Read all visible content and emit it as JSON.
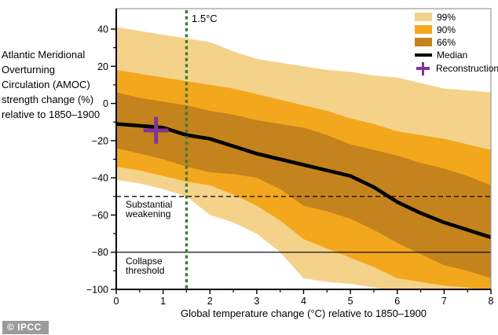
{
  "watermark": "© IPCC",
  "y_axis_title": "Atlantic Meridional\nOverturning\nCirculation (AMOC)\nstrength change (%)\nrelative to 1850–1900",
  "annotations": {
    "temp_label": "1.5°C",
    "substantial_weakening": "Substantial\nweakening",
    "collapse_threshold": "Collapse\nthreshold"
  },
  "legend": {
    "items": [
      {
        "type": "box",
        "color": "#F5D28A",
        "label": "99%"
      },
      {
        "type": "box",
        "color": "#F3A71C",
        "label": "90%"
      },
      {
        "type": "box",
        "color": "#C5831E",
        "label": "66%"
      },
      {
        "type": "line",
        "color": "#000000",
        "label": "Median"
      },
      {
        "type": "cross",
        "color": "#7E3794",
        "label": "Reconstruction"
      }
    ]
  },
  "colors": {
    "band_99": "#F5D28A",
    "band_90": "#F3A71C",
    "band_66": "#C5831E",
    "median": "#000000",
    "reconstruction": "#7E3794",
    "threshold_green": "#3B7D2F",
    "axis": "#000000",
    "frame": "#999999"
  },
  "chart_data": {
    "type": "area",
    "title": "",
    "xlabel": "Global temperature change (°C) relative to 1850–1900",
    "ylabel": "Atlantic Meridional Overturning Circulation (AMOC) strength change (%) relative to 1850–1900",
    "xlim": [
      0,
      8
    ],
    "ylim": [
      -100,
      51
    ],
    "grid": false,
    "legend_position": "top-right",
    "x_ticks_major": [
      0,
      1,
      2,
      3,
      4,
      5,
      6,
      7,
      8
    ],
    "x_tick_labels": [
      "0",
      "1",
      "2",
      "3",
      "4",
      "5",
      "6",
      "7",
      "8"
    ],
    "x_ticks_minor": [
      0.5,
      1.5,
      2.5,
      3.5,
      4.5,
      5.5,
      6.5,
      7.5
    ],
    "y_ticks_major": [
      40,
      20,
      0,
      -20,
      -40,
      -60,
      -80,
      -100
    ],
    "y_tick_labels": [
      "40",
      "20",
      "0",
      "−20",
      "−40",
      "−60",
      "−80",
      "−100"
    ],
    "y_ticks_minor": [
      30,
      10,
      -10,
      -30,
      -50,
      -70,
      -90
    ],
    "x": [
      0,
      0.5,
      1,
      1.5,
      2,
      2.5,
      3,
      3.5,
      4,
      4.5,
      5,
      5.5,
      6,
      6.5,
      7,
      7.5,
      8
    ],
    "bands": [
      {
        "name": "99%",
        "color": "#F5D28A",
        "upper": [
          41,
          39,
          37,
          35,
          33,
          28,
          24,
          22,
          20,
          18,
          17,
          15,
          14,
          11,
          8,
          7,
          6
        ],
        "lower": [
          -41,
          -43,
          -46,
          -50,
          -60,
          -64,
          -70,
          -80,
          -94,
          -96,
          -97,
          -99,
          -101,
          -102,
          -103,
          -103,
          -104
        ]
      },
      {
        "name": "90%",
        "color": "#F3A71C",
        "upper": [
          18,
          16,
          14,
          12,
          10,
          8,
          5,
          2,
          -1,
          -4,
          -8,
          -11,
          -15,
          -17,
          -19,
          -22,
          -25
        ],
        "lower": [
          -34,
          -36,
          -39,
          -42,
          -44,
          -49,
          -55,
          -63,
          -73,
          -78,
          -83,
          -88,
          -94,
          -96,
          -98,
          -99,
          -101
        ]
      },
      {
        "name": "66%",
        "color": "#C5831E",
        "upper": [
          6,
          3,
          1,
          -1,
          -4,
          -6,
          -9,
          -11,
          -13,
          -17,
          -22,
          -25,
          -28,
          -32,
          -35,
          -39,
          -44
        ],
        "lower": [
          -24,
          -27,
          -30,
          -34,
          -37,
          -38,
          -40,
          -46,
          -55,
          -58,
          -62,
          -68,
          -75,
          -81,
          -87,
          -90,
          -94
        ]
      }
    ],
    "median": {
      "name": "Median",
      "color": "#000000",
      "values": [
        -11,
        -12,
        -13,
        -17,
        -19,
        -23,
        -27,
        -30,
        -33,
        -36,
        -39,
        -45,
        -53,
        -59,
        -64,
        -68,
        -72
      ]
    },
    "reconstruction": {
      "name": "Reconstruction",
      "x": 0.85,
      "y": -14.5,
      "color": "#7E3794"
    },
    "reference_lines": {
      "temp_threshold": {
        "axis": "x",
        "value": 1.5,
        "style": "dotted",
        "color": "#3B7D2F",
        "label": "1.5°C"
      },
      "substantial_weakening": {
        "axis": "y",
        "value": -50,
        "style": "dashed",
        "color": "#000000",
        "label": "Substantial weakening"
      },
      "collapse_threshold": {
        "axis": "y",
        "value": -80,
        "style": "solid",
        "color": "#000000",
        "label": "Collapse threshold"
      }
    }
  }
}
